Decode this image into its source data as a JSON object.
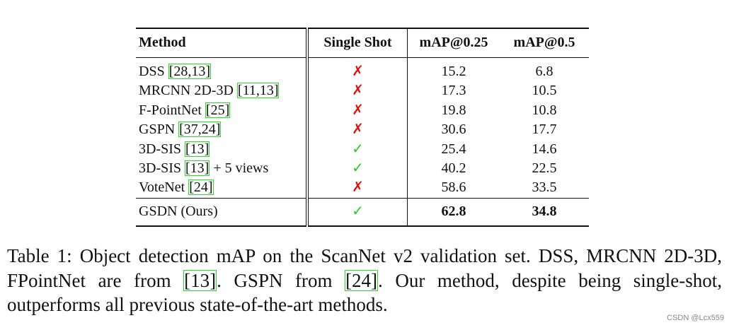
{
  "table": {
    "header": [
      "Method",
      "Single Shot",
      "mAP@0.25",
      "mAP@0.5"
    ],
    "rows": [
      {
        "method": "DSS",
        "cite": "[28,13]",
        "suffix": null,
        "single_shot": "✗",
        "map25": "15.2",
        "map5": "6.8"
      },
      {
        "method": "MRCNN 2D-3D",
        "cite": "[11,13]",
        "suffix": null,
        "single_shot": "✗",
        "map25": "17.3",
        "map5": "10.5"
      },
      {
        "method": "F-PointNet",
        "cite": "[25]",
        "suffix": null,
        "single_shot": "✗",
        "map25": "19.8",
        "map5": "10.8"
      },
      {
        "method": "GSPN",
        "cite": "[37,24]",
        "suffix": null,
        "single_shot": "✗",
        "map25": "30.6",
        "map5": "17.7"
      },
      {
        "method": "3D-SIS",
        "cite": "[13]",
        "suffix": null,
        "single_shot": "✓",
        "map25": "25.4",
        "map5": "14.6"
      },
      {
        "method": "3D-SIS",
        "cite": "[13]",
        "suffix": "+ 5 views",
        "single_shot": "✓",
        "map25": "40.2",
        "map5": "22.5"
      },
      {
        "method": "VoteNet",
        "cite": "[24]",
        "suffix": null,
        "single_shot": "✗",
        "map25": "58.6",
        "map5": "33.5"
      }
    ],
    "ours": {
      "method": "GSDN (Ours)",
      "single_shot": "✓",
      "map25": "62.8",
      "map5": "34.8"
    }
  },
  "caption": {
    "text0": "Table 1: Object detection mAP on the ScanNet v2 validation set. DSS, MRCNN 2D-3D, FPointNet are from ",
    "cite0": "[13]",
    "text1": ". GSPN from ",
    "cite1": "[24]",
    "text2": ". Our method, despite being single-shot, outperforms all previous state-of-the-art methods."
  },
  "watermark": "CSDN @Lcx559"
}
